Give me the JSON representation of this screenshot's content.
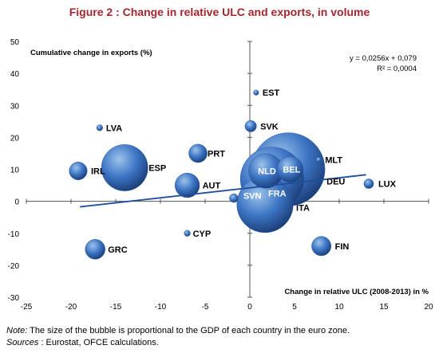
{
  "figure_title": "Figure 2 : Change in relative ULC and exports, in volume",
  "note_label": "Note:",
  "note_text": "The size of the bubble is proportional to the GDP of each country in the euro zone.",
  "sources_label": "Sources",
  "sources_text": " : Eurostat, OFCE calculations.",
  "colors": {
    "bubble_light": "#9cc3ec",
    "bubble_mid": "#3d75c4",
    "bubble_dark": "#1b3f7a",
    "trend": "#1f4e9a",
    "title": "#a3262e"
  },
  "chart_data": {
    "type": "scatter",
    "xlabel": "Change in relative ULC (2008-2013) in %",
    "ylabel": "Cumulative change in exports (%)",
    "xlim": [
      -25,
      20
    ],
    "ylim": [
      -30,
      50
    ],
    "x_ticks": [
      -25,
      -20,
      -15,
      -10,
      -5,
      0,
      5,
      10,
      15,
      20
    ],
    "y_ticks": [
      -30,
      -20,
      -10,
      0,
      10,
      20,
      30,
      40,
      50
    ],
    "grid": false,
    "regression": {
      "equation": "y = 0,0256x + 0,079",
      "r2": "R² = 0,0004",
      "slope": 0.0256,
      "intercept": 0.079
    },
    "points": [
      {
        "label": "EST",
        "x": 0.7,
        "y": 34,
        "size": 0.15
      },
      {
        "label": "LVA",
        "x": -16.8,
        "y": 23,
        "size": 0.2
      },
      {
        "label": "SVK",
        "x": 0.1,
        "y": 23.5,
        "size": 0.7
      },
      {
        "label": "PRT",
        "x": -5.8,
        "y": 15,
        "size": 1.8
      },
      {
        "label": "BEL",
        "x": 4.5,
        "y": 10,
        "size": 3.6
      },
      {
        "label": "MLT",
        "x": 7.7,
        "y": 13,
        "size": 0.08
      },
      {
        "label": "ESP",
        "x": -14,
        "y": 10.5,
        "size": 11.5
      },
      {
        "label": "IRL",
        "x": -19.2,
        "y": 9.5,
        "size": 1.7
      },
      {
        "label": "NLD",
        "x": 1.8,
        "y": 9.5,
        "size": 6.4
      },
      {
        "label": "DEU",
        "x": 4.3,
        "y": 10,
        "size": 28.5
      },
      {
        "label": "FRA",
        "x": 2.5,
        "y": 7,
        "size": 21.5
      },
      {
        "label": "LUX",
        "x": 13.3,
        "y": 5.5,
        "size": 0.5
      },
      {
        "label": "AUT",
        "x": -7,
        "y": 5,
        "size": 3.2
      },
      {
        "label": "SVN",
        "x": -1.8,
        "y": 1,
        "size": 0.4
      },
      {
        "label": "ITA",
        "x": 1.7,
        "y": -1,
        "size": 16.8
      },
      {
        "label": "CYP",
        "x": -7,
        "y": -10,
        "size": 0.2
      },
      {
        "label": "GRC",
        "x": -17.3,
        "y": -15,
        "size": 2.1
      },
      {
        "label": "FIN",
        "x": 8,
        "y": -14,
        "size": 2
      }
    ]
  }
}
